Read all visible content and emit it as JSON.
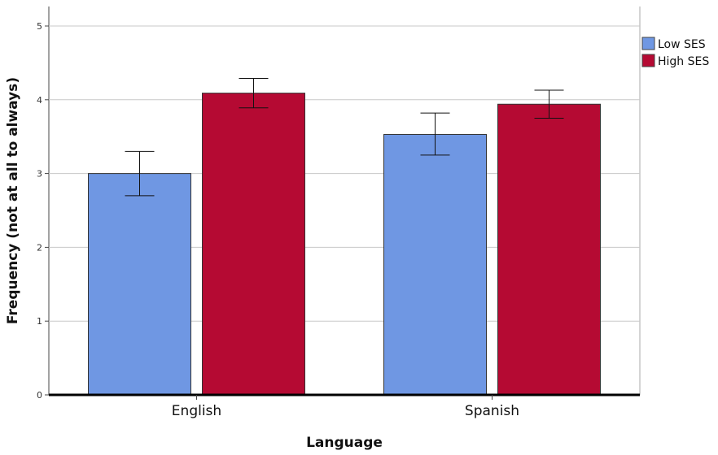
{
  "chart_data": {
    "type": "bar",
    "xlabel": "Language",
    "ylabel": "Frequency (not at all to always)",
    "categories": [
      "English",
      "Spanish"
    ],
    "ylim": [
      0,
      5
    ],
    "yticks": [
      "0",
      "1",
      "2",
      "3",
      "4",
      "5"
    ],
    "grid": true,
    "legend_position": "top-right",
    "series": [
      {
        "name": "Low SES",
        "color": "#6f97e3",
        "values": [
          3.0,
          3.53
        ],
        "error_low": [
          2.7,
          3.25
        ],
        "error_high": [
          3.3,
          3.82
        ]
      },
      {
        "name": "High SES",
        "color": "#b50a33",
        "values": [
          4.09,
          3.94
        ],
        "error_low": [
          3.89,
          3.75
        ],
        "error_high": [
          4.29,
          4.13
        ]
      }
    ],
    "error_bars": true
  }
}
